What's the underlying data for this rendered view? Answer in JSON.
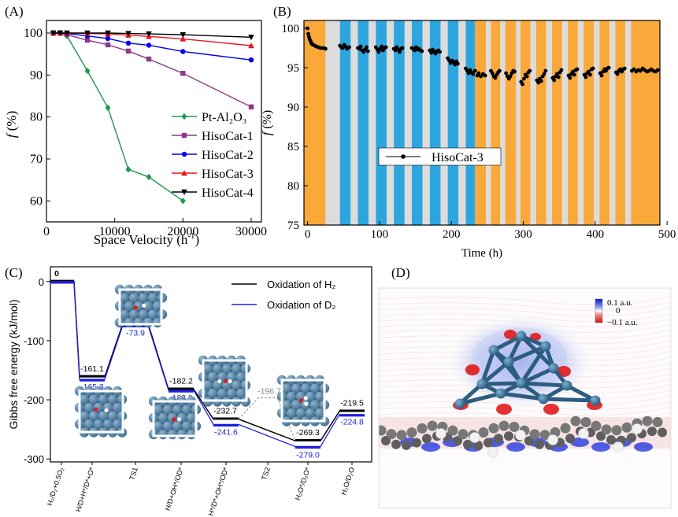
{
  "panels": {
    "a": "(A)",
    "b": "(B)",
    "c": "(C)",
    "d": "(D)"
  },
  "chart_data": [
    {
      "type": "line",
      "panel": "A",
      "xlabel": "Space Velocity (h",
      "xlabel_sup": "-1",
      "xlabel_end": ")",
      "ylabel_f": "f",
      "ylabel_unit": " (%)",
      "xlim": [
        0,
        31500
      ],
      "ylim": [
        55,
        103
      ],
      "xticks": [
        0,
        10000,
        20000,
        30000
      ],
      "xtick_labels": [
        "0",
        "10000",
        "20000",
        "30000"
      ],
      "yticks": [
        60,
        70,
        80,
        90,
        100
      ],
      "ytick_labels": [
        "60",
        "70",
        "80",
        "90",
        "100"
      ],
      "legend_position": "lower-right",
      "series": [
        {
          "name": "Pt-Al₂O₃",
          "color": "#1d9a4a",
          "marker": "diamond",
          "x": [
            1000,
            2000,
            3000,
            6000,
            9000,
            12000,
            15000,
            20000
          ],
          "y": [
            100,
            100,
            99.3,
            91,
            82.2,
            67.5,
            65.7,
            60
          ]
        },
        {
          "name": "HisoCat-1",
          "color": "#8b3a8b",
          "marker": "square",
          "x": [
            1000,
            2000,
            3000,
            6000,
            9000,
            12000,
            15000,
            20000,
            30000
          ],
          "y": [
            100,
            100,
            99.6,
            98.3,
            97.2,
            95.7,
            93.8,
            90.4,
            82.4
          ]
        },
        {
          "name": "HisoCat-2",
          "color": "#0000ee",
          "marker": "circle",
          "x": [
            1000,
            2000,
            3000,
            6000,
            9000,
            12000,
            15000,
            20000,
            30000
          ],
          "y": [
            100,
            100,
            99.9,
            99.3,
            98.7,
            97.6,
            97.1,
            95.6,
            93.6
          ]
        },
        {
          "name": "HisoCat-3",
          "color": "#e8141b",
          "marker": "triangle-up",
          "x": [
            1000,
            2000,
            3000,
            6000,
            9000,
            12000,
            15000,
            20000,
            30000
          ],
          "y": [
            100,
            100,
            100,
            99.9,
            99.8,
            99.5,
            99.2,
            98.6,
            97
          ]
        },
        {
          "name": "HisoCat-4",
          "color": "#000000",
          "marker": "triangle-down",
          "x": [
            1000,
            2000,
            3000,
            6000,
            9000,
            12000,
            15000,
            20000,
            30000
          ],
          "y": [
            100,
            100,
            100,
            100,
            100,
            99.9,
            99.8,
            99.6,
            99
          ]
        }
      ]
    },
    {
      "type": "scatter",
      "panel": "B",
      "xlabel": "Time (h)",
      "ylabel_f": "f",
      "ylabel_unit": " (%)",
      "xlim": [
        -5,
        490
      ],
      "ylim": [
        75,
        101
      ],
      "xticks": [
        0,
        100,
        200,
        300,
        400,
        500
      ],
      "xtick_labels": [
        "0",
        "100",
        "200",
        "300",
        "400",
        "500"
      ],
      "yticks": [
        75,
        80,
        85,
        90,
        95,
        100
      ],
      "ytick_labels": [
        "75",
        "80",
        "85",
        "90",
        "95",
        "100"
      ],
      "band_colors": {
        "orange": "#f9a83a",
        "blue": "#2da6df",
        "gray": "#dcdcdc"
      },
      "bands": [
        {
          "from": -5,
          "to": 25,
          "color": "orange"
        },
        {
          "from": 25,
          "to": 45,
          "color": "gray"
        },
        {
          "from": 45,
          "to": 60,
          "color": "blue"
        },
        {
          "from": 60,
          "to": 70,
          "color": "gray"
        },
        {
          "from": 70,
          "to": 85,
          "color": "blue"
        },
        {
          "from": 85,
          "to": 95,
          "color": "gray"
        },
        {
          "from": 95,
          "to": 110,
          "color": "blue"
        },
        {
          "from": 110,
          "to": 120,
          "color": "gray"
        },
        {
          "from": 120,
          "to": 135,
          "color": "blue"
        },
        {
          "from": 135,
          "to": 145,
          "color": "gray"
        },
        {
          "from": 145,
          "to": 160,
          "color": "blue"
        },
        {
          "from": 160,
          "to": 170,
          "color": "gray"
        },
        {
          "from": 170,
          "to": 185,
          "color": "blue"
        },
        {
          "from": 185,
          "to": 195,
          "color": "gray"
        },
        {
          "from": 195,
          "to": 210,
          "color": "blue"
        },
        {
          "from": 210,
          "to": 220,
          "color": "gray"
        },
        {
          "from": 220,
          "to": 233,
          "color": "blue"
        },
        {
          "from": 233,
          "to": 248,
          "color": "orange"
        },
        {
          "from": 248,
          "to": 255,
          "color": "gray"
        },
        {
          "from": 255,
          "to": 268,
          "color": "orange"
        },
        {
          "from": 268,
          "to": 275,
          "color": "gray"
        },
        {
          "from": 275,
          "to": 290,
          "color": "orange"
        },
        {
          "from": 290,
          "to": 296,
          "color": "gray"
        },
        {
          "from": 296,
          "to": 310,
          "color": "orange"
        },
        {
          "from": 310,
          "to": 318,
          "color": "gray"
        },
        {
          "from": 318,
          "to": 332,
          "color": "orange"
        },
        {
          "from": 332,
          "to": 340,
          "color": "gray"
        },
        {
          "from": 340,
          "to": 354,
          "color": "orange"
        },
        {
          "from": 354,
          "to": 362,
          "color": "gray"
        },
        {
          "from": 362,
          "to": 376,
          "color": "orange"
        },
        {
          "from": 376,
          "to": 384,
          "color": "gray"
        },
        {
          "from": 384,
          "to": 398,
          "color": "orange"
        },
        {
          "from": 398,
          "to": 406,
          "color": "gray"
        },
        {
          "from": 406,
          "to": 420,
          "color": "orange"
        },
        {
          "from": 420,
          "to": 428,
          "color": "gray"
        },
        {
          "from": 428,
          "to": 442,
          "color": "orange"
        },
        {
          "from": 442,
          "to": 450,
          "color": "gray"
        },
        {
          "from": 450,
          "to": 490,
          "color": "orange"
        }
      ],
      "series": [
        {
          "name": "HisoCat-3",
          "color": "#000000",
          "x": [
            0,
            1,
            2,
            3,
            4,
            5,
            6,
            8,
            10,
            12,
            15,
            18,
            22,
            25,
            45,
            47,
            49,
            51,
            53,
            55,
            58,
            70,
            72,
            74,
            76,
            78,
            80,
            82,
            84,
            95,
            97,
            99,
            101,
            103,
            105,
            107,
            109,
            120,
            122,
            124,
            126,
            128,
            130,
            132,
            145,
            147,
            149,
            151,
            153,
            155,
            157,
            159,
            170,
            172,
            174,
            176,
            178,
            180,
            182,
            184,
            195,
            197,
            199,
            201,
            203,
            205,
            207,
            209,
            220,
            222,
            224,
            226,
            228,
            230,
            233,
            236,
            238,
            241,
            244,
            247,
            255,
            257,
            259,
            261,
            263,
            265,
            267,
            276,
            278,
            280,
            282,
            284,
            286,
            288,
            297,
            299,
            301,
            303,
            305,
            307,
            309,
            319,
            321,
            323,
            325,
            327,
            329,
            331,
            341,
            343,
            345,
            347,
            349,
            351,
            353,
            363,
            365,
            367,
            369,
            371,
            373,
            375,
            385,
            387,
            389,
            391,
            393,
            395,
            397,
            407,
            409,
            411,
            413,
            415,
            417,
            419,
            429,
            431,
            433,
            435,
            437,
            439,
            441,
            451,
            454,
            457,
            460,
            463,
            466,
            469,
            472,
            475,
            478,
            481,
            484,
            487
          ],
          "y": [
            100,
            99.3,
            98.9,
            98.6,
            98.4,
            98.2,
            98.0,
            97.9,
            97.8,
            97.7,
            97.6,
            97.5,
            97.5,
            97.4,
            97.8,
            97.6,
            97.5,
            97.9,
            97.7,
            97.4,
            97.6,
            97.5,
            97.4,
            97.7,
            97.2,
            97.0,
            97.3,
            97.6,
            97.1,
            97.6,
            97.3,
            97.0,
            97.4,
            97.7,
            97.2,
            97.5,
            97.6,
            97.4,
            97.2,
            97.6,
            97.3,
            97.0,
            97.4,
            97.5,
            97.5,
            97.4,
            97.2,
            97.6,
            97.3,
            97.4,
            97.2,
            97.1,
            97.2,
            96.9,
            97.3,
            97.0,
            96.8,
            97.1,
            97.2,
            97.0,
            96.2,
            95.9,
            95.6,
            95.9,
            95.7,
            95.4,
            95.8,
            95.5,
            94.9,
            94.6,
            94.3,
            94.7,
            94.4,
            94.2,
            94.6,
            94.0,
            94.3,
            93.9,
            94.2,
            94.0,
            94.6,
            94.3,
            93.9,
            93.7,
            94.1,
            94.4,
            94.6,
            94.3,
            93.9,
            93.6,
            93.9,
            94.3,
            94.6,
            94.5,
            93.2,
            92.9,
            93.6,
            94.1,
            93.9,
            94.4,
            94.6,
            93.4,
            93.1,
            93.6,
            93.3,
            93.9,
            94.2,
            94.6,
            93.7,
            93.4,
            93.9,
            94.2,
            93.8,
            94.4,
            94.7,
            94.0,
            93.7,
            94.2,
            94.5,
            94.1,
            94.7,
            94.8,
            94.1,
            93.8,
            94.3,
            94.5,
            94.1,
            94.8,
            94.9,
            94.3,
            94.0,
            94.5,
            94.8,
            94.6,
            94.9,
            95.0,
            94.4,
            94.2,
            94.6,
            94.8,
            94.5,
            94.8,
            94.9,
            94.6,
            94.8,
            94.5,
            94.7,
            94.6,
            94.9,
            94.7,
            94.5,
            94.6,
            94.8,
            94.6,
            94.5,
            94.7
          ]
        }
      ]
    },
    {
      "type": "line",
      "panel": "C",
      "ylabel": "Gibbs free energy (kJ/mol)",
      "ylim": [
        -305,
        25
      ],
      "yticks": [
        0,
        -100,
        -200,
        -300
      ],
      "ytick_labels": [
        "0",
        "-100",
        "-200",
        "-300"
      ],
      "categories": [
        "H₂/D₂+0.5O₂",
        "H/D+H*/D*+O*",
        "TS1",
        "H/D+OH*/OD*",
        "H*/D*+OH*/OD*",
        "TS2",
        "H₂O*/D₂O*",
        "H₂O/D₂O"
      ],
      "legend_position": "top-right",
      "series": [
        {
          "name": "Oxidation of H₂",
          "color": "#000000",
          "values": [
            0,
            -161.1,
            -70.9,
            -182.2,
            -232.7,
            null,
            -269.3,
            -219.5
          ],
          "labels": [
            "0",
            "-161.1",
            "-70.9",
            "-182.2",
            "-232.7",
            "",
            "-269.3",
            "-219.5"
          ]
        },
        {
          "name": "Oxidation of D₂",
          "color": "#1f1fe0",
          "values": [
            0,
            -165.3,
            -73.9,
            -183.9,
            -241.6,
            null,
            -279.0,
            -224.8
          ],
          "labels": [
            "",
            "-165.3",
            "-73.9",
            "-183.9",
            "-241.6",
            "",
            "-279.0",
            "-224.8"
          ]
        }
      ],
      "ts2_value": -196.7,
      "ts2_label": "-196.7"
    }
  ],
  "panel_d": {
    "colorbar_max": "0.1 a.u.",
    "colorbar_mid": "0",
    "colorbar_min": "−0.1 a.u.",
    "color_positive": "#1a2ee0",
    "color_negative": "#e01a1a",
    "cluster_color": "#2c5d80",
    "support_color": "#777777",
    "hydrogen_color": "#f2f2f2"
  }
}
